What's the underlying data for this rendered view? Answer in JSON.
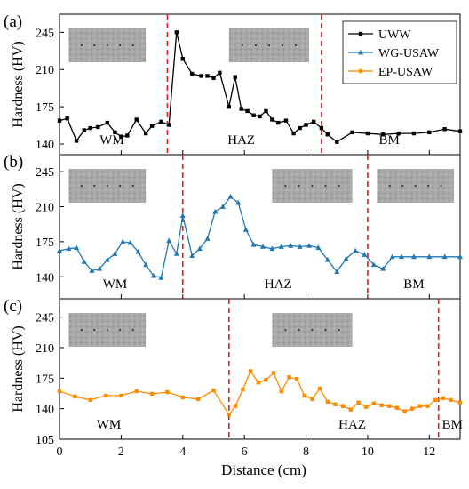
{
  "figure": {
    "xlabel": "Distance (cm)",
    "xticks": [
      "0",
      "2",
      "4",
      "6",
      "8",
      "10",
      "12"
    ],
    "colors": {
      "uww": "#000000",
      "wg": "#1f77b4",
      "ep": "#ff8c00",
      "boundary": "#e02020",
      "photo": "#9a9a9a"
    }
  },
  "chart_data": [
    {
      "type": "line",
      "panel_label": "(a)",
      "ylabel": "Hardness (HV)",
      "yticks": [
        "140",
        "175",
        "210",
        "245"
      ],
      "ylim": [
        130,
        262
      ],
      "xlim": [
        0,
        13
      ],
      "legend": [
        "UWW",
        "WG-USAW",
        "EP-USAW"
      ],
      "zone_labels": [
        {
          "text": "WM",
          "x": 1.7
        },
        {
          "text": "HAZ",
          "x": 5.9
        },
        {
          "text": "BM",
          "x": 10.7
        }
      ],
      "boundaries": [
        3.5,
        8.5
      ],
      "photos": [
        [
          0.3,
          2.8
        ],
        [
          5.5,
          8.1
        ]
      ],
      "series": [
        {
          "name": "UWW",
          "color": "#000000",
          "marker": "square",
          "x": [
            0.0,
            0.25,
            0.55,
            0.8,
            1.0,
            1.25,
            1.55,
            1.8,
            2.0,
            2.2,
            2.5,
            2.8,
            3.0,
            3.3,
            3.55,
            3.8,
            4.0,
            4.3,
            4.6,
            4.8,
            5.0,
            5.2,
            5.5,
            5.7,
            5.9,
            6.1,
            6.3,
            6.5,
            6.7,
            6.9,
            7.1,
            7.35,
            7.6,
            7.8,
            8.0,
            8.25,
            8.5,
            8.7,
            9.0,
            9.5,
            10.0,
            10.5,
            11.0,
            11.5,
            12.0,
            12.5,
            13.0
          ],
          "y": [
            162,
            164,
            143,
            153,
            155,
            156,
            160,
            151,
            147,
            148,
            163,
            150,
            157,
            161,
            158,
            245,
            220,
            206,
            204,
            204,
            202,
            207,
            175,
            203,
            173,
            171,
            167,
            166,
            171,
            163,
            160,
            162,
            150,
            155,
            158,
            161,
            155,
            149,
            142,
            151,
            150,
            149,
            150,
            150,
            151,
            154,
            152
          ]
        }
      ]
    },
    {
      "type": "line",
      "panel_label": "(b)",
      "ylabel": "Hardness (HV)",
      "yticks": [
        "140",
        "175",
        "210",
        "245"
      ],
      "ylim": [
        118,
        262
      ],
      "xlim": [
        0,
        13
      ],
      "zone_labels": [
        {
          "text": "WM",
          "x": 1.8
        },
        {
          "text": "HAZ",
          "x": 7.1
        },
        {
          "text": "BM",
          "x": 11.5
        }
      ],
      "boundaries": [
        4.0,
        10.0
      ],
      "photos": [
        [
          0.3,
          2.8
        ],
        [
          6.9,
          9.5
        ],
        [
          10.3,
          12.8
        ]
      ],
      "series": [
        {
          "name": "WG-USAW",
          "color": "#1f77b4",
          "marker": "triangle",
          "x": [
            0.0,
            0.3,
            0.55,
            0.8,
            1.05,
            1.3,
            1.55,
            1.8,
            2.05,
            2.3,
            2.55,
            2.8,
            3.05,
            3.3,
            3.55,
            3.8,
            4.0,
            4.3,
            4.55,
            4.8,
            5.05,
            5.3,
            5.55,
            5.8,
            6.05,
            6.3,
            6.6,
            6.9,
            7.2,
            7.5,
            7.8,
            8.1,
            8.4,
            8.7,
            9.0,
            9.3,
            9.6,
            9.9,
            10.2,
            10.5,
            10.8,
            11.1,
            11.5,
            12.0,
            12.5,
            13.0
          ],
          "y": [
            166,
            168,
            169,
            155,
            146,
            148,
            157,
            163,
            175,
            174,
            165,
            152,
            141,
            139,
            176,
            163,
            201,
            161,
            168,
            178,
            205,
            210,
            220,
            214,
            187,
            172,
            170,
            168,
            170,
            171,
            170,
            171,
            169,
            157,
            145,
            158,
            166,
            162,
            152,
            148,
            160,
            160,
            160,
            160,
            160,
            160
          ]
        }
      ]
    },
    {
      "type": "line",
      "panel_label": "(c)",
      "ylabel": "Hardness (HV)",
      "yticks": [
        "105",
        "140",
        "175",
        "210",
        "245"
      ],
      "ylim": [
        105,
        266
      ],
      "xlim": [
        0,
        13
      ],
      "zone_labels": [
        {
          "text": "WM",
          "x": 1.6
        },
        {
          "text": "HAZ",
          "x": 9.5
        },
        {
          "text": "BM",
          "x": 12.75
        }
      ],
      "boundaries": [
        5.5,
        12.3
      ],
      "photos": [
        [
          0.3,
          2.8
        ],
        [
          6.9,
          9.5
        ]
      ],
      "series": [
        {
          "name": "EP-USAW",
          "color": "#ff8c00",
          "marker": "square",
          "x": [
            0.0,
            0.5,
            1.0,
            1.5,
            2.0,
            2.5,
            3.0,
            3.5,
            4.0,
            4.5,
            5.0,
            5.5,
            5.7,
            5.95,
            6.2,
            6.45,
            6.7,
            6.95,
            7.2,
            7.45,
            7.7,
            7.95,
            8.2,
            8.45,
            8.7,
            8.95,
            9.2,
            9.45,
            9.7,
            9.95,
            10.2,
            10.45,
            10.7,
            10.95,
            11.2,
            11.45,
            11.7,
            11.95,
            12.2,
            12.45,
            12.7,
            13.0
          ],
          "y": [
            160,
            154,
            150,
            155,
            155,
            160,
            157,
            159,
            153,
            151,
            161,
            133,
            143,
            162,
            183,
            170,
            173,
            181,
            160,
            176,
            174,
            155,
            151,
            163,
            148,
            145,
            143,
            139,
            147,
            142,
            146,
            144,
            143,
            141,
            137,
            140,
            143,
            143,
            150,
            152,
            150,
            147
          ]
        }
      ]
    }
  ]
}
